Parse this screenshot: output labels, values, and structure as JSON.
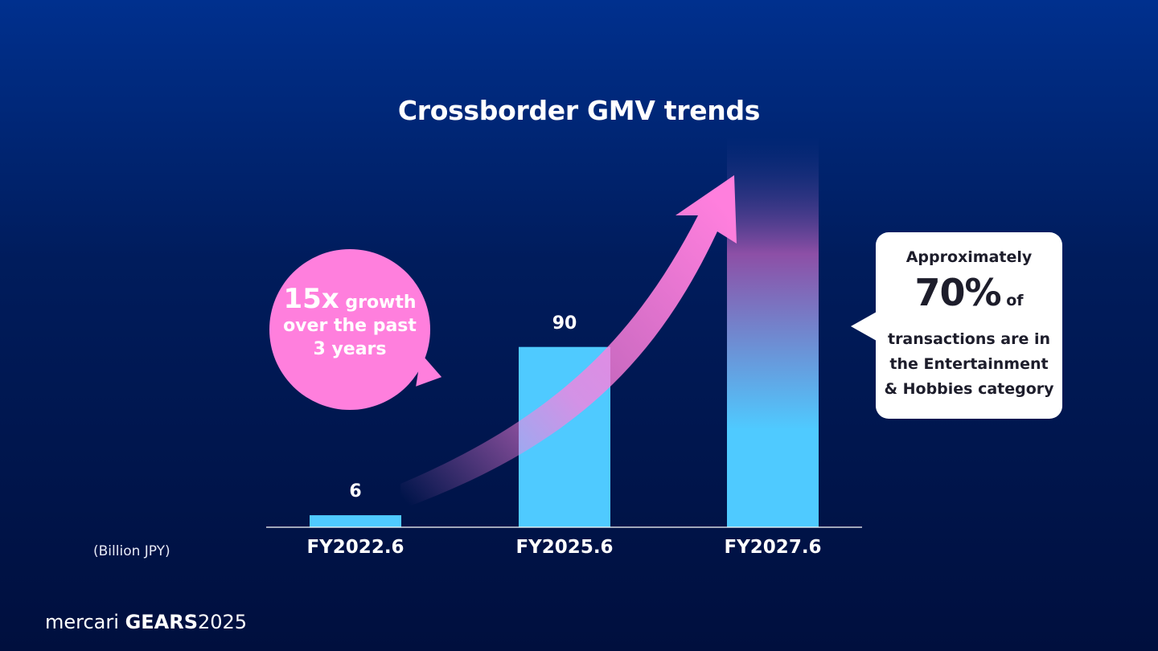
{
  "chart_data": {
    "type": "bar",
    "title": "Crossborder GMV trends",
    "unit_label": "(Billion JPY)",
    "categories": [
      "FY2022.6",
      "FY2025.6",
      "FY2027.6"
    ],
    "values": [
      6,
      90,
      null
    ],
    "value_labels": [
      "6",
      "90",
      ""
    ],
    "ylim": [
      0,
      195
    ],
    "bar_color": "#4fcaff",
    "grid": false
  },
  "growth_callout": {
    "big": "15x",
    "line1_rest": " growth",
    "line2": "over the past",
    "line3": "3 years",
    "color": "#ff7fdd"
  },
  "share_callout": {
    "line1": "Approximately",
    "percent": "70%",
    "of": " of",
    "line3": "transactions are in",
    "line4": "the Entertainment",
    "line5": "& Hobbies category"
  },
  "footer": {
    "brand_word": "mercari",
    "brand_gears": "GEARS",
    "brand_year": "2025"
  }
}
